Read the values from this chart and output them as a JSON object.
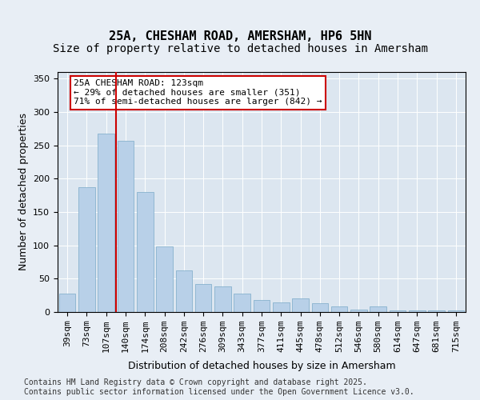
{
  "title_line1": "25A, CHESHAM ROAD, AMERSHAM, HP6 5HN",
  "title_line2": "Size of property relative to detached houses in Amersham",
  "xlabel": "Distribution of detached houses by size in Amersham",
  "ylabel": "Number of detached properties",
  "categories": [
    "39sqm",
    "73sqm",
    "107sqm",
    "140sqm",
    "174sqm",
    "208sqm",
    "242sqm",
    "276sqm",
    "309sqm",
    "343sqm",
    "377sqm",
    "411sqm",
    "445sqm",
    "478sqm",
    "512sqm",
    "546sqm",
    "580sqm",
    "614sqm",
    "647sqm",
    "681sqm",
    "715sqm"
  ],
  "values": [
    28,
    187,
    268,
    257,
    180,
    98,
    63,
    42,
    38,
    28,
    18,
    15,
    20,
    13,
    8,
    4,
    9,
    3,
    3,
    2,
    2
  ],
  "bar_color": "#b8d0e8",
  "bar_edge_color": "#7aaac8",
  "marker_index": 3,
  "marker_color": "#cc0000",
  "annotation_text": "25A CHESHAM ROAD: 123sqm\n← 29% of detached houses are smaller (351)\n71% of semi-detached houses are larger (842) →",
  "annotation_box_color": "#ffffff",
  "annotation_box_edge": "#cc0000",
  "ylim": [
    0,
    360
  ],
  "yticks": [
    0,
    50,
    100,
    150,
    200,
    250,
    300,
    350
  ],
  "background_color": "#e8eef5",
  "plot_background": "#dce6f0",
  "footer_text": "Contains HM Land Registry data © Crown copyright and database right 2025.\nContains public sector information licensed under the Open Government Licence v3.0.",
  "title_fontsize": 11,
  "subtitle_fontsize": 10,
  "axis_label_fontsize": 9,
  "tick_fontsize": 8,
  "annotation_fontsize": 8,
  "footer_fontsize": 7
}
